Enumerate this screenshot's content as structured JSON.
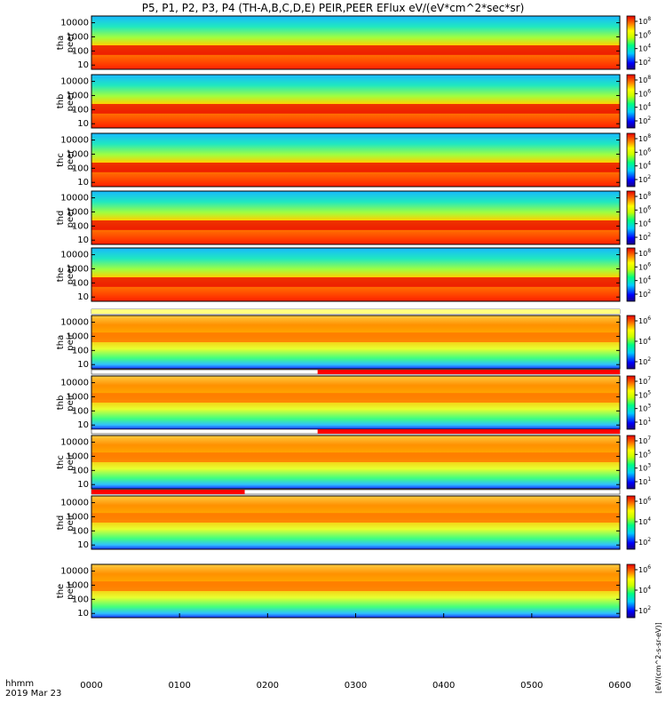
{
  "title": "P5, P1, P2, P3, P4 (TH-A,B,C,D,E) PEIR,PEER EFlux eV/(eV*cm^2*sec*sr)",
  "colorbar_label": "[eV/(cm^2-s-sr-eV)]",
  "time_axis": {
    "label_top": "hhmm",
    "label_bottom": "2019 Mar 23",
    "ticks": [
      "0000",
      "0100",
      "0200",
      "0300",
      "0400",
      "0500",
      "0600"
    ]
  },
  "colors": {
    "low": "#000080",
    "mid": "#00ff00",
    "high": "#ff0000",
    "flag_bar": "#ff0000"
  },
  "chart_data": {
    "type": "heatmap",
    "x_range": [
      "0000",
      "0600"
    ],
    "yscale": "log",
    "ylim": [
      5,
      30000
    ],
    "yticks": [
      "10000",
      "1000",
      "100",
      "10"
    ],
    "panels": [
      {
        "probe": "tha",
        "species": "peer",
        "ylabel": [
          "tha",
          "peer"
        ],
        "cb_min_exp": 1,
        "cb_max_exp": 8,
        "cb_ticks": [
          "10^8",
          "10^6",
          "10^4",
          "10^2"
        ]
      },
      {
        "probe": "thb",
        "species": "peer",
        "ylabel": [
          "thb",
          "peer"
        ],
        "cb_min_exp": 1,
        "cb_max_exp": 8,
        "cb_ticks": [
          "10^8",
          "10^6",
          "10^4",
          "10^2"
        ]
      },
      {
        "probe": "thc",
        "species": "peer",
        "ylabel": [
          "thc",
          "peer"
        ],
        "cb_min_exp": 1,
        "cb_max_exp": 8,
        "cb_ticks": [
          "10^8",
          "10^6",
          "10^4",
          "10^2"
        ]
      },
      {
        "probe": "thd",
        "species": "peer",
        "ylabel": [
          "thd",
          "peer"
        ],
        "cb_min_exp": 1,
        "cb_max_exp": 8,
        "cb_ticks": [
          "10^8",
          "10^6",
          "10^4",
          "10^2"
        ]
      },
      {
        "probe": "the",
        "species": "peer",
        "ylabel": [
          "the",
          "peer"
        ],
        "cb_min_exp": 1,
        "cb_max_exp": 8,
        "cb_ticks": [
          "10^8",
          "10^6",
          "10^4",
          "10^2"
        ]
      },
      {
        "probe": "tha",
        "species": "peir",
        "ylabel": [
          "tha",
          "peir"
        ],
        "cb_min_exp": 1,
        "cb_max_exp": 7,
        "cb_ticks": [
          "10^6",
          "10^4",
          "10^2"
        ]
      },
      {
        "probe": "thb",
        "species": "peir",
        "ylabel": [
          "thb",
          "peir"
        ],
        "cb_min_exp": 1,
        "cb_max_exp": 8,
        "cb_ticks": [
          "10^7",
          "10^5",
          "10^3",
          "10^1"
        ]
      },
      {
        "probe": "thc",
        "species": "peir",
        "ylabel": [
          "thc",
          "peir"
        ],
        "cb_min_exp": 1,
        "cb_max_exp": 8,
        "cb_ticks": [
          "10^7",
          "10^5",
          "10^3",
          "10^1"
        ]
      },
      {
        "probe": "thd",
        "species": "peir",
        "ylabel": [
          "thd",
          "peir"
        ],
        "cb_min_exp": 1,
        "cb_max_exp": 7,
        "cb_ticks": [
          "10^6",
          "10^4",
          "10^2"
        ]
      },
      {
        "probe": "the",
        "species": "peir",
        "ylabel": [
          "the",
          "peir"
        ],
        "cb_min_exp": 1,
        "cb_max_exp": 7,
        "cb_ticks": [
          "10^6",
          "10^4",
          "10^2"
        ]
      }
    ]
  }
}
